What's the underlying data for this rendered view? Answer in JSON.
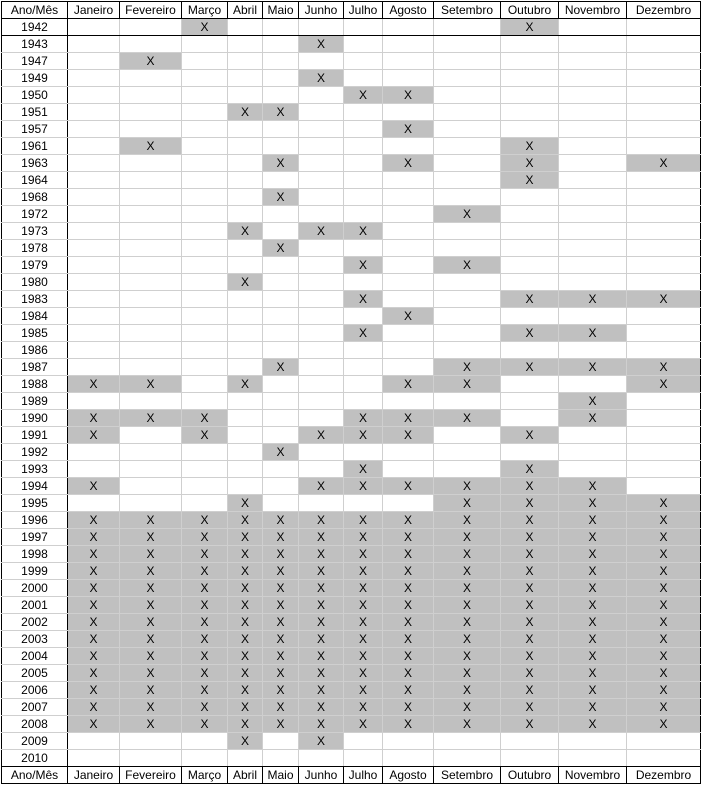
{
  "header": [
    "Ano/Mês",
    "Janeiro",
    "Fevereiro",
    "Março",
    "Abril",
    "Maio",
    "Junho",
    "Julho",
    "Agosto",
    "Setembro",
    "Outubro",
    "Novembro",
    "Dezembro"
  ],
  "mark": "X",
  "rows": [
    {
      "year": "1942",
      "months": [
        3,
        10
      ]
    },
    {
      "year": "1943",
      "months": [
        6
      ]
    },
    {
      "year": "1947",
      "months": [
        2
      ]
    },
    {
      "year": "1949",
      "months": [
        6
      ]
    },
    {
      "year": "1950",
      "months": [
        7,
        8
      ]
    },
    {
      "year": "1951",
      "months": [
        4,
        5
      ]
    },
    {
      "year": "1957",
      "months": [
        8
      ]
    },
    {
      "year": "1961",
      "months": [
        2,
        10
      ]
    },
    {
      "year": "1963",
      "months": [
        5,
        8,
        10,
        12
      ]
    },
    {
      "year": "1964",
      "months": [
        10
      ]
    },
    {
      "year": "1968",
      "months": [
        5
      ]
    },
    {
      "year": "1972",
      "months": [
        9
      ]
    },
    {
      "year": "1973",
      "months": [
        4,
        6,
        7
      ]
    },
    {
      "year": "1978",
      "months": [
        5
      ]
    },
    {
      "year": "1979",
      "months": [
        7,
        9
      ]
    },
    {
      "year": "1980",
      "months": [
        4
      ]
    },
    {
      "year": "1983",
      "months": [
        7,
        10,
        11,
        12
      ]
    },
    {
      "year": "1984",
      "months": [
        8
      ]
    },
    {
      "year": "1985",
      "months": [
        7,
        10,
        11
      ]
    },
    {
      "year": "1986",
      "months": []
    },
    {
      "year": "1987",
      "months": [
        5,
        9,
        10,
        11,
        12
      ]
    },
    {
      "year": "1988",
      "months": [
        1,
        2,
        4,
        8,
        9,
        12
      ]
    },
    {
      "year": "1989",
      "months": [
        11
      ]
    },
    {
      "year": "1990",
      "months": [
        1,
        2,
        3,
        7,
        8,
        9,
        11
      ]
    },
    {
      "year": "1991",
      "months": [
        1,
        3,
        6,
        7,
        8,
        10
      ]
    },
    {
      "year": "1992",
      "months": [
        5
      ]
    },
    {
      "year": "1993",
      "months": [
        7,
        10
      ]
    },
    {
      "year": "1994",
      "months": [
        1,
        6,
        7,
        8,
        9,
        10,
        11
      ]
    },
    {
      "year": "1995",
      "months": [
        4,
        9,
        10,
        11,
        12
      ]
    },
    {
      "year": "1996",
      "months": [
        1,
        2,
        3,
        4,
        5,
        6,
        7,
        8,
        9,
        10,
        11,
        12
      ]
    },
    {
      "year": "1997",
      "months": [
        1,
        2,
        3,
        4,
        5,
        6,
        7,
        8,
        9,
        10,
        11,
        12
      ]
    },
    {
      "year": "1998",
      "months": [
        1,
        2,
        3,
        4,
        5,
        6,
        7,
        8,
        9,
        10,
        11,
        12
      ]
    },
    {
      "year": "1999",
      "months": [
        1,
        2,
        3,
        4,
        5,
        6,
        7,
        8,
        9,
        10,
        11,
        12
      ]
    },
    {
      "year": "2000",
      "months": [
        1,
        2,
        3,
        4,
        5,
        6,
        7,
        8,
        9,
        10,
        11,
        12
      ]
    },
    {
      "year": "2001",
      "months": [
        1,
        2,
        3,
        4,
        5,
        6,
        7,
        8,
        9,
        10,
        11,
        12
      ]
    },
    {
      "year": "2002",
      "months": [
        1,
        2,
        3,
        4,
        5,
        6,
        7,
        8,
        9,
        10,
        11,
        12
      ]
    },
    {
      "year": "2003",
      "months": [
        1,
        2,
        3,
        4,
        5,
        6,
        7,
        8,
        9,
        10,
        11,
        12
      ]
    },
    {
      "year": "2004",
      "months": [
        1,
        2,
        3,
        4,
        5,
        6,
        7,
        8,
        9,
        10,
        11,
        12
      ]
    },
    {
      "year": "2005",
      "months": [
        1,
        2,
        3,
        4,
        5,
        6,
        7,
        8,
        9,
        10,
        11,
        12
      ]
    },
    {
      "year": "2006",
      "months": [
        1,
        2,
        3,
        4,
        5,
        6,
        7,
        8,
        9,
        10,
        11,
        12
      ]
    },
    {
      "year": "2007",
      "months": [
        1,
        2,
        3,
        4,
        5,
        6,
        7,
        8,
        9,
        10,
        11,
        12
      ]
    },
    {
      "year": "2008",
      "months": [
        1,
        2,
        3,
        4,
        5,
        6,
        7,
        8,
        9,
        10,
        11,
        12
      ]
    },
    {
      "year": "2009",
      "months": [
        4,
        6
      ]
    },
    {
      "year": "2010",
      "months": []
    }
  ],
  "colors": {
    "marked_cell": "#c0c0c0",
    "grid": "#cfcfcf",
    "border": "#000000"
  }
}
